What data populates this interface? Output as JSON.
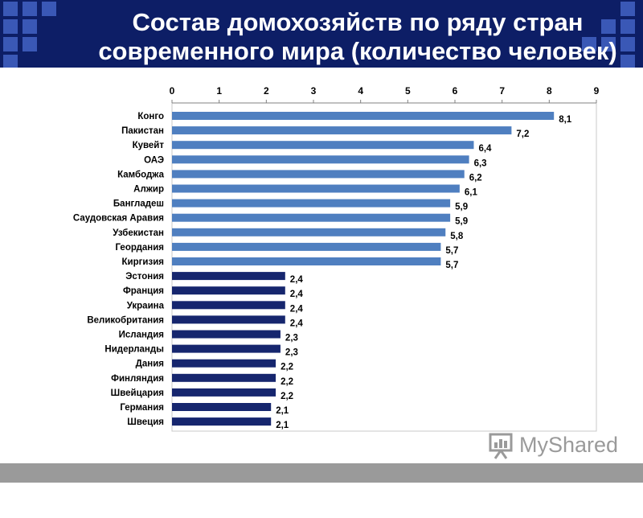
{
  "header": {
    "title_line1": "Состав домохозяйств по ряду стран",
    "title_line2": "современного мира (количество человек)"
  },
  "logo": {
    "text": "MyShared",
    "icon": "presentation-board-icon"
  },
  "colors": {
    "header_bg": "#0d1e66",
    "bar_light": "#4f7fc0",
    "bar_dark": "#16266e",
    "footer_bar": "#9a9a9a"
  },
  "chart_data": {
    "type": "bar",
    "orientation": "horizontal",
    "categories": [
      "Конго",
      "Пакистан",
      "Кувейт",
      "ОАЭ",
      "Камбоджа",
      "Алжир",
      "Бангладеш",
      "Саудовская Аравия",
      "Узбекистан",
      "Геордания",
      "Киргизия",
      "Эстония",
      "Франция",
      "Украина",
      "Великобритания",
      "Исландия",
      "Нидерланды",
      "Дания",
      "Финляндия",
      "Швейцария",
      "Германия",
      "Швеция"
    ],
    "values": [
      8.1,
      7.2,
      6.4,
      6.3,
      6.2,
      6.1,
      5.9,
      5.9,
      5.8,
      5.7,
      5.7,
      2.4,
      2.4,
      2.4,
      2.4,
      2.3,
      2.3,
      2.2,
      2.2,
      2.2,
      2.1,
      2.1
    ],
    "data_labels": [
      "8,1",
      "7,2",
      "6,4",
      "6,3",
      "6,2",
      "6,1",
      "5,9",
      "5,9",
      "5,8",
      "5,7",
      "5,7",
      "2,4",
      "2,4",
      "2,4",
      "2,4",
      "2,3",
      "2,3",
      "2,2",
      "2,2",
      "2,2",
      "2,1",
      "2,1"
    ],
    "xlim": [
      0,
      9
    ],
    "x_ticks": [
      "0",
      "1",
      "2",
      "3",
      "4",
      "5",
      "6",
      "7",
      "8",
      "9"
    ],
    "x_axis_position": "top",
    "gridlines": false,
    "title": "",
    "xlabel": "",
    "ylabel": ""
  }
}
